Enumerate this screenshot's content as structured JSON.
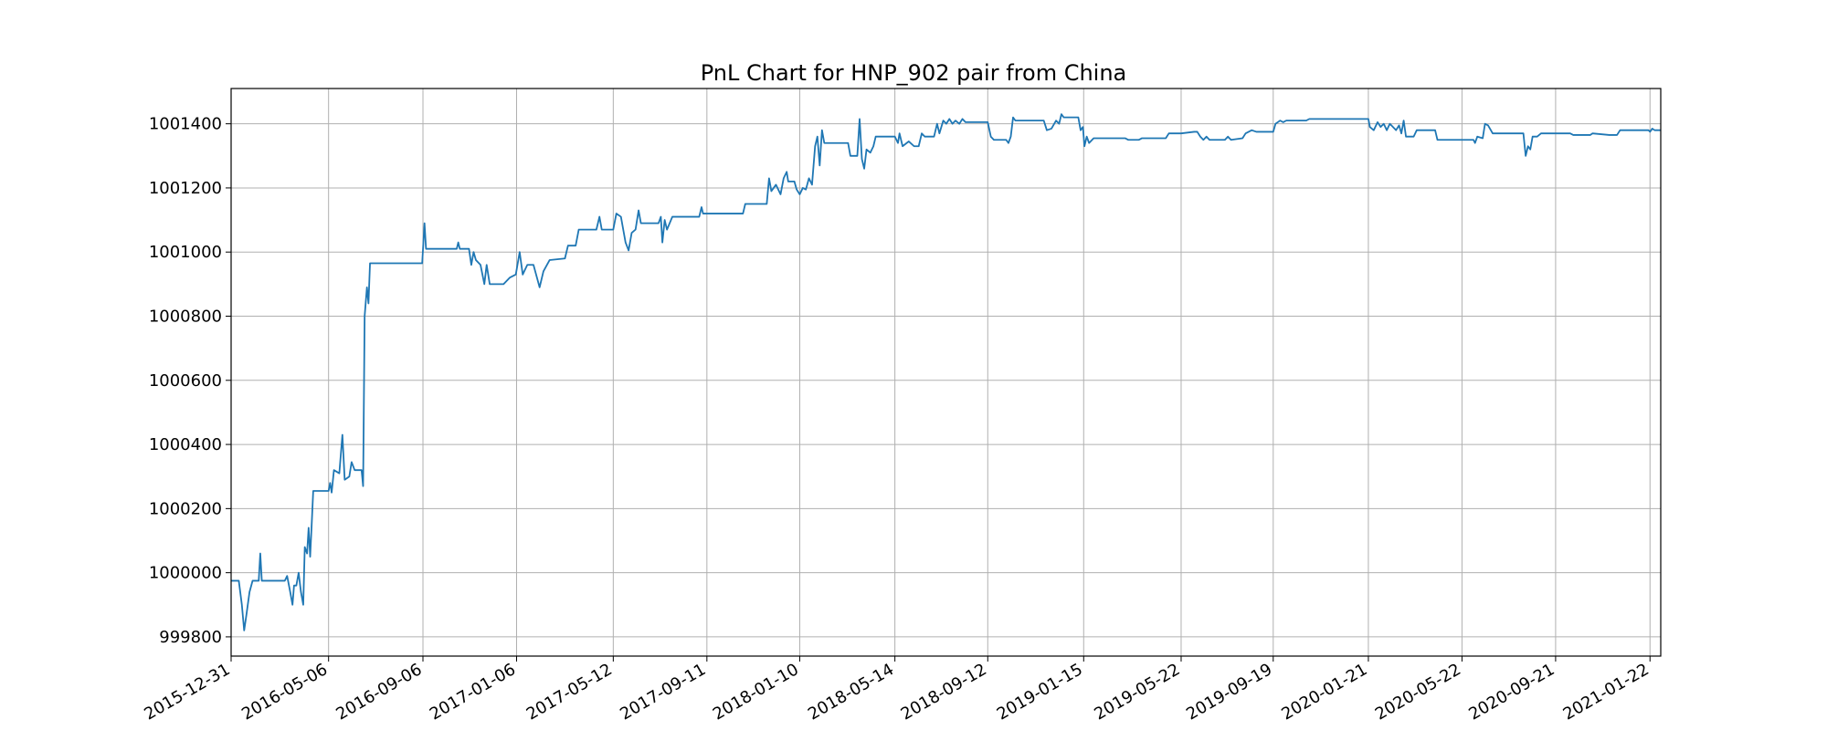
{
  "chart_data": {
    "type": "line",
    "title": "PnL Chart for HNP_902 pair from China",
    "xlabel": "",
    "ylabel": "",
    "x_tick_labels": [
      "2015-12-31",
      "2016-05-06",
      "2016-09-06",
      "2017-01-06",
      "2017-05-12",
      "2017-09-11",
      "2018-01-10",
      "2018-05-14",
      "2018-09-12",
      "2019-01-15",
      "2019-05-22",
      "2019-09-19",
      "2020-01-21",
      "2020-05-22",
      "2020-09-21",
      "2021-01-22"
    ],
    "y_tick_labels": [
      "999800",
      "1000000",
      "1000200",
      "1000400",
      "1000600",
      "1000800",
      "1001000",
      "1001200",
      "1001400"
    ],
    "y_ticks": [
      999800,
      1000000,
      1000200,
      1000400,
      1000600,
      1000800,
      1001000,
      1001200,
      1001400
    ],
    "xlim": [
      "2015-12-31",
      "2021-02-05"
    ],
    "ylim": [
      999740,
      1001510
    ],
    "grid": true,
    "line_color": "#1f77b4",
    "series": [
      {
        "points": [
          [
            "2015-12-31",
            999975
          ],
          [
            "2016-01-10",
            999975
          ],
          [
            "2016-01-14",
            999900
          ],
          [
            "2016-01-17",
            999820
          ],
          [
            "2016-01-20",
            999870
          ],
          [
            "2016-01-24",
            999940
          ],
          [
            "2016-01-28",
            999975
          ],
          [
            "2016-02-05",
            999975
          ],
          [
            "2016-02-07",
            1000060
          ],
          [
            "2016-02-09",
            999975
          ],
          [
            "2016-03-01",
            999975
          ],
          [
            "2016-03-10",
            999975
          ],
          [
            "2016-03-13",
            999990
          ],
          [
            "2016-03-17",
            999940
          ],
          [
            "2016-03-20",
            999900
          ],
          [
            "2016-03-22",
            999960
          ],
          [
            "2016-03-25",
            999960
          ],
          [
            "2016-03-28",
            1000000
          ],
          [
            "2016-03-31",
            999940
          ],
          [
            "2016-04-03",
            999900
          ],
          [
            "2016-04-05",
            1000080
          ],
          [
            "2016-04-08",
            1000060
          ],
          [
            "2016-04-10",
            1000140
          ],
          [
            "2016-04-12",
            1000050
          ],
          [
            "2016-04-14",
            1000150
          ],
          [
            "2016-04-16",
            1000255
          ],
          [
            "2016-05-06",
            1000255
          ],
          [
            "2016-05-08",
            1000280
          ],
          [
            "2016-05-10",
            1000250
          ],
          [
            "2016-05-13",
            1000320
          ],
          [
            "2016-05-20",
            1000310
          ],
          [
            "2016-05-24",
            1000430
          ],
          [
            "2016-05-27",
            1000290
          ],
          [
            "2016-06-02",
            1000300
          ],
          [
            "2016-06-05",
            1000345
          ],
          [
            "2016-06-09",
            1000320
          ],
          [
            "2016-06-18",
            1000320
          ],
          [
            "2016-06-20",
            1000270
          ],
          [
            "2016-06-22",
            1000800
          ],
          [
            "2016-06-25",
            1000890
          ],
          [
            "2016-06-27",
            1000840
          ],
          [
            "2016-06-29",
            1000965
          ],
          [
            "2016-09-05",
            1000965
          ],
          [
            "2016-09-08",
            1001090
          ],
          [
            "2016-09-10",
            1001010
          ],
          [
            "2016-10-20",
            1001010
          ],
          [
            "2016-10-22",
            1001030
          ],
          [
            "2016-10-24",
            1001010
          ],
          [
            "2016-11-05",
            1001010
          ],
          [
            "2016-11-08",
            1000960
          ],
          [
            "2016-11-11",
            1001000
          ],
          [
            "2016-11-14",
            1000975
          ],
          [
            "2016-11-20",
            1000960
          ],
          [
            "2016-11-25",
            1000900
          ],
          [
            "2016-11-28",
            1000960
          ],
          [
            "2016-12-02",
            1000900
          ],
          [
            "2016-12-20",
            1000900
          ],
          [
            "2016-12-28",
            1000920
          ],
          [
            "2017-01-05",
            1000930
          ],
          [
            "2017-01-10",
            1001000
          ],
          [
            "2017-01-14",
            1000930
          ],
          [
            "2017-01-20",
            1000960
          ],
          [
            "2017-01-28",
            1000960
          ],
          [
            "2017-02-05",
            1000890
          ],
          [
            "2017-02-10",
            1000940
          ],
          [
            "2017-02-18",
            1000975
          ],
          [
            "2017-03-10",
            1000980
          ],
          [
            "2017-03-14",
            1001020
          ],
          [
            "2017-03-24",
            1001020
          ],
          [
            "2017-03-28",
            1001070
          ],
          [
            "2017-04-20",
            1001070
          ],
          [
            "2017-04-24",
            1001110
          ],
          [
            "2017-04-27",
            1001070
          ],
          [
            "2017-05-12",
            1001070
          ],
          [
            "2017-05-16",
            1001120
          ],
          [
            "2017-05-22",
            1001110
          ],
          [
            "2017-05-28",
            1001030
          ],
          [
            "2017-06-01",
            1001005
          ],
          [
            "2017-06-05",
            1001060
          ],
          [
            "2017-06-10",
            1001070
          ],
          [
            "2017-06-14",
            1001130
          ],
          [
            "2017-06-17",
            1001090
          ],
          [
            "2017-07-10",
            1001090
          ],
          [
            "2017-07-13",
            1001110
          ],
          [
            "2017-07-15",
            1001030
          ],
          [
            "2017-07-18",
            1001100
          ],
          [
            "2017-07-21",
            1001070
          ],
          [
            "2017-07-28",
            1001110
          ],
          [
            "2017-09-01",
            1001110
          ],
          [
            "2017-09-04",
            1001140
          ],
          [
            "2017-09-06",
            1001120
          ],
          [
            "2017-10-28",
            1001120
          ],
          [
            "2017-10-31",
            1001150
          ],
          [
            "2017-11-03",
            1001150
          ],
          [
            "2017-11-28",
            1001150
          ],
          [
            "2017-12-01",
            1001230
          ],
          [
            "2017-12-04",
            1001190
          ],
          [
            "2017-12-10",
            1001210
          ],
          [
            "2017-12-16",
            1001180
          ],
          [
            "2017-12-20",
            1001230
          ],
          [
            "2017-12-24",
            1001250
          ],
          [
            "2017-12-26",
            1001220
          ],
          [
            "2018-01-03",
            1001220
          ],
          [
            "2018-01-06",
            1001195
          ],
          [
            "2018-01-10",
            1001180
          ],
          [
            "2018-01-14",
            1001200
          ],
          [
            "2018-01-18",
            1001195
          ],
          [
            "2018-01-22",
            1001230
          ],
          [
            "2018-01-26",
            1001210
          ],
          [
            "2018-01-30",
            1001330
          ],
          [
            "2018-02-02",
            1001360
          ],
          [
            "2018-02-05",
            1001270
          ],
          [
            "2018-02-08",
            1001380
          ],
          [
            "2018-02-11",
            1001340
          ],
          [
            "2018-03-14",
            1001340
          ],
          [
            "2018-03-17",
            1001300
          ],
          [
            "2018-03-26",
            1001300
          ],
          [
            "2018-03-29",
            1001415
          ],
          [
            "2018-04-01",
            1001290
          ],
          [
            "2018-04-04",
            1001260
          ],
          [
            "2018-04-07",
            1001320
          ],
          [
            "2018-04-12",
            1001310
          ],
          [
            "2018-04-16",
            1001330
          ],
          [
            "2018-04-19",
            1001360
          ],
          [
            "2018-05-14",
            1001360
          ],
          [
            "2018-05-18",
            1001340
          ],
          [
            "2018-05-20",
            1001370
          ],
          [
            "2018-05-24",
            1001330
          ],
          [
            "2018-06-01",
            1001345
          ],
          [
            "2018-06-08",
            1001330
          ],
          [
            "2018-06-14",
            1001330
          ],
          [
            "2018-06-18",
            1001370
          ],
          [
            "2018-06-22",
            1001360
          ],
          [
            "2018-07-04",
            1001360
          ],
          [
            "2018-07-08",
            1001400
          ],
          [
            "2018-07-11",
            1001370
          ],
          [
            "2018-07-16",
            1001410
          ],
          [
            "2018-07-20",
            1001400
          ],
          [
            "2018-07-24",
            1001415
          ],
          [
            "2018-07-28",
            1001400
          ],
          [
            "2018-08-01",
            1001410
          ],
          [
            "2018-08-06",
            1001400
          ],
          [
            "2018-08-10",
            1001415
          ],
          [
            "2018-08-14",
            1001405
          ],
          [
            "2018-09-12",
            1001405
          ],
          [
            "2018-09-16",
            1001360
          ],
          [
            "2018-09-20",
            1001350
          ],
          [
            "2018-10-06",
            1001350
          ],
          [
            "2018-10-09",
            1001340
          ],
          [
            "2018-10-12",
            1001360
          ],
          [
            "2018-10-15",
            1001420
          ],
          [
            "2018-10-18",
            1001410
          ],
          [
            "2018-11-24",
            1001410
          ],
          [
            "2018-11-28",
            1001380
          ],
          [
            "2018-12-04",
            1001385
          ],
          [
            "2018-12-10",
            1001410
          ],
          [
            "2018-12-14",
            1001400
          ],
          [
            "2018-12-17",
            1001430
          ],
          [
            "2018-12-20",
            1001420
          ],
          [
            "2019-01-08",
            1001420
          ],
          [
            "2019-01-11",
            1001380
          ],
          [
            "2019-01-14",
            1001390
          ],
          [
            "2019-01-16",
            1001330
          ],
          [
            "2019-01-19",
            1001360
          ],
          [
            "2019-01-22",
            1001340
          ],
          [
            "2019-01-28",
            1001355
          ],
          [
            "2019-03-10",
            1001355
          ],
          [
            "2019-03-14",
            1001350
          ],
          [
            "2019-03-28",
            1001350
          ],
          [
            "2019-04-01",
            1001355
          ],
          [
            "2019-05-02",
            1001355
          ],
          [
            "2019-05-06",
            1001370
          ],
          [
            "2019-05-22",
            1001370
          ],
          [
            "2019-06-08",
            1001375
          ],
          [
            "2019-06-12",
            1001375
          ],
          [
            "2019-06-16",
            1001360
          ],
          [
            "2019-06-20",
            1001350
          ],
          [
            "2019-06-24",
            1001360
          ],
          [
            "2019-06-28",
            1001350
          ],
          [
            "2019-07-18",
            1001350
          ],
          [
            "2019-07-22",
            1001360
          ],
          [
            "2019-07-26",
            1001350
          ],
          [
            "2019-08-10",
            1001355
          ],
          [
            "2019-08-14",
            1001370
          ],
          [
            "2019-08-22",
            1001380
          ],
          [
            "2019-08-28",
            1001375
          ],
          [
            "2019-09-19",
            1001375
          ],
          [
            "2019-09-22",
            1001400
          ],
          [
            "2019-09-28",
            1001410
          ],
          [
            "2019-10-02",
            1001405
          ],
          [
            "2019-10-06",
            1001410
          ],
          [
            "2019-11-01",
            1001410
          ],
          [
            "2019-11-05",
            1001415
          ],
          [
            "2020-01-21",
            1001415
          ],
          [
            "2020-01-23",
            1001390
          ],
          [
            "2020-01-28",
            1001380
          ],
          [
            "2020-02-02",
            1001405
          ],
          [
            "2020-02-06",
            1001390
          ],
          [
            "2020-02-10",
            1001400
          ],
          [
            "2020-02-14",
            1001380
          ],
          [
            "2020-02-18",
            1001400
          ],
          [
            "2020-02-22",
            1001390
          ],
          [
            "2020-02-26",
            1001380
          ],
          [
            "2020-03-01",
            1001395
          ],
          [
            "2020-03-04",
            1001370
          ],
          [
            "2020-03-07",
            1001410
          ],
          [
            "2020-03-10",
            1001360
          ],
          [
            "2020-03-20",
            1001360
          ],
          [
            "2020-03-24",
            1001380
          ],
          [
            "2020-04-17",
            1001380
          ],
          [
            "2020-04-20",
            1001350
          ],
          [
            "2020-05-22",
            1001350
          ],
          [
            "2020-06-06",
            1001350
          ],
          [
            "2020-06-08",
            1001340
          ],
          [
            "2020-06-11",
            1001360
          ],
          [
            "2020-06-18",
            1001355
          ],
          [
            "2020-06-21",
            1001400
          ],
          [
            "2020-06-25",
            1001395
          ],
          [
            "2020-07-01",
            1001370
          ],
          [
            "2020-08-10",
            1001370
          ],
          [
            "2020-08-13",
            1001300
          ],
          [
            "2020-08-16",
            1001330
          ],
          [
            "2020-08-19",
            1001320
          ],
          [
            "2020-08-22",
            1001360
          ],
          [
            "2020-08-28",
            1001360
          ],
          [
            "2020-09-02",
            1001370
          ],
          [
            "2020-09-21",
            1001370
          ],
          [
            "2020-10-10",
            1001370
          ],
          [
            "2020-10-14",
            1001365
          ],
          [
            "2020-11-05",
            1001365
          ],
          [
            "2020-11-08",
            1001370
          ],
          [
            "2020-11-30",
            1001365
          ],
          [
            "2020-12-10",
            1001365
          ],
          [
            "2020-12-14",
            1001380
          ],
          [
            "2021-01-20",
            1001380
          ],
          [
            "2021-01-22",
            1001375
          ],
          [
            "2021-01-25",
            1001385
          ],
          [
            "2021-01-28",
            1001380
          ],
          [
            "2021-02-05",
            1001380
          ]
        ]
      }
    ]
  }
}
